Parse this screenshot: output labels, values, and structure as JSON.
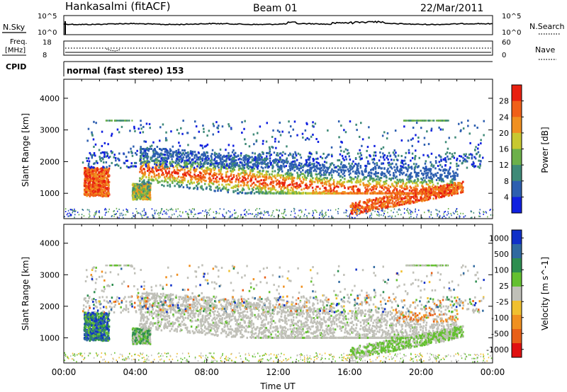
{
  "header": {
    "station": "Hankasalmi (fitACF)",
    "beam": "Beam 01",
    "date": "22/Mar/2011"
  },
  "strip_panels": {
    "nsky": {
      "label": "N.Sky",
      "right_label": "N.Search",
      "left_ticks": [
        "10^5",
        "10^0"
      ],
      "right_ticks": [
        "10^5",
        "10^0"
      ]
    },
    "freq": {
      "label_line1": "Freq.",
      "label_line2": "[MHz]",
      "left_ticks": [
        "18",
        "8"
      ],
      "right_ticks": [
        "60",
        "0"
      ],
      "right_label": "Nave"
    },
    "cpid": {
      "label": "CPID",
      "mode_text": "normal (fast stereo) 153"
    }
  },
  "chart_data": [
    {
      "type": "heatmap",
      "title": "",
      "quantity": "Power",
      "ylabel": "Slant Range [km]",
      "xlabel": "",
      "xlim_hours": [
        0,
        24
      ],
      "ylim_km": [
        200,
        4600
      ],
      "yticks": [
        1000,
        2000,
        3000,
        4000
      ],
      "colorbar": {
        "label": "Power [dB]",
        "ticks": [
          "4",
          "8",
          "12",
          "16",
          "20",
          "24",
          "28"
        ],
        "colors": [
          "#1020e0",
          "#2d5fb0",
          "#3f8a78",
          "#6cb04a",
          "#c8c830",
          "#f09020",
          "#f06018",
          "#e82010"
        ]
      },
      "echo_regions": [
        {
          "name": "early patch",
          "t_start": 1.1,
          "t_end": 2.5,
          "range_km": [
            900,
            1800
          ],
          "level": "high"
        },
        {
          "name": "patch 04:00",
          "t_start": 3.8,
          "t_end": 4.8,
          "range_km": [
            800,
            1300
          ],
          "level": "medium"
        },
        {
          "name": "main band",
          "t_start": 4.2,
          "t_end": 22.0,
          "range_km": [
            1000,
            2200
          ],
          "level": "high"
        },
        {
          "name": "lower band",
          "t_start": 16.0,
          "t_end": 22.3,
          "range_km": [
            400,
            1000
          ],
          "level": "high"
        },
        {
          "name": "far scatter",
          "t_start": 1.0,
          "t_end": 23.5,
          "range_km": [
            1800,
            3300
          ],
          "level": "low"
        }
      ]
    },
    {
      "type": "heatmap",
      "title": "",
      "quantity": "Velocity",
      "ylabel": "Slant Range [km]",
      "xlabel": "Time UT",
      "xlim_hours": [
        0,
        24
      ],
      "ylim_km": [
        200,
        4600
      ],
      "yticks": [
        1000,
        2000,
        3000,
        4000
      ],
      "xticks": [
        "00:00",
        "04:00",
        "08:00",
        "12:00",
        "16:00",
        "20:00",
        "00:00"
      ],
      "colorbar": {
        "label": "Velocity [m s^-1]",
        "ticks": [
          "1000",
          "500",
          "100",
          "25",
          "-25",
          "-100",
          "-500",
          "-1000"
        ],
        "colors": [
          "#1030c8",
          "#306aa0",
          "#2e8e50",
          "#64c030",
          "#c0c0b8",
          "#f0c030",
          "#f09020",
          "#e86018",
          "#e01010"
        ]
      },
      "echo_regions": [
        {
          "name": "early patch",
          "t_start": 1.1,
          "t_end": 2.5,
          "range_km": [
            900,
            1800
          ],
          "velocity": "mixed 100 to 1000"
        },
        {
          "name": "ground scatter band",
          "t_start": 4.2,
          "t_end": 21.5,
          "range_km": [
            1000,
            2500
          ],
          "velocity": "-25 to 25"
        },
        {
          "name": "lower band",
          "t_start": 15.8,
          "t_end": 22.3,
          "range_km": [
            400,
            900
          ],
          "velocity": "25 to 100"
        },
        {
          "name": "evening patch",
          "t_start": 19.0,
          "t_end": 22.0,
          "range_km": [
            1200,
            2600
          ],
          "velocity": "-100 to -500"
        }
      ]
    }
  ]
}
